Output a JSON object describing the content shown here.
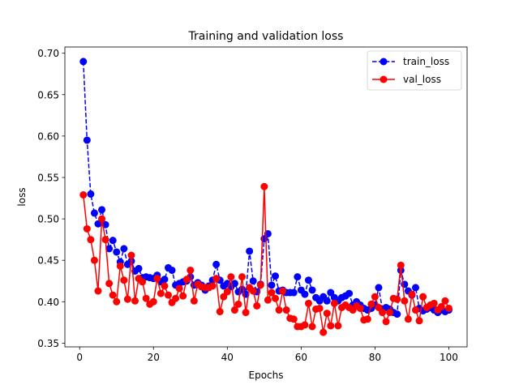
{
  "chart_data": {
    "type": "line",
    "title": "Training and validation loss",
    "xlabel": "Epochs",
    "ylabel": "loss",
    "xlim": [
      -4,
      104.95
    ],
    "ylim": [
      0.3455,
      0.7075
    ],
    "xticks": [
      0,
      20,
      40,
      60,
      80,
      100
    ],
    "yticks": [
      0.35,
      0.4,
      0.45,
      0.5,
      0.55,
      0.6,
      0.65,
      0.7
    ],
    "ytick_labels": [
      "0.35",
      "0.40",
      "0.45",
      "0.50",
      "0.55",
      "0.60",
      "0.65",
      "0.70"
    ],
    "legend_position": "top-right",
    "x": [
      1,
      2,
      3,
      4,
      5,
      6,
      7,
      8,
      9,
      10,
      11,
      12,
      13,
      14,
      15,
      16,
      17,
      18,
      19,
      20,
      21,
      22,
      23,
      24,
      25,
      26,
      27,
      28,
      29,
      30,
      31,
      32,
      33,
      34,
      35,
      36,
      37,
      38,
      39,
      40,
      41,
      42,
      43,
      44,
      45,
      46,
      47,
      48,
      49,
      50,
      51,
      52,
      53,
      54,
      55,
      56,
      57,
      58,
      59,
      60,
      61,
      62,
      63,
      64,
      65,
      66,
      67,
      68,
      69,
      70,
      71,
      72,
      73,
      74,
      75,
      76,
      77,
      78,
      79,
      80,
      81,
      82,
      83,
      84,
      85,
      86,
      87,
      88,
      89,
      90,
      91,
      92,
      93,
      94,
      95,
      96,
      97,
      98,
      99,
      100
    ],
    "series": [
      {
        "name": "train_loss",
        "color": "#0000ff",
        "linestyle": "dashed",
        "values": [
          0.69,
          0.595,
          0.53,
          0.507,
          0.494,
          0.511,
          0.493,
          0.464,
          0.474,
          0.46,
          0.448,
          0.464,
          0.445,
          0.449,
          0.437,
          0.44,
          0.429,
          0.43,
          0.429,
          0.428,
          0.432,
          0.424,
          0.427,
          0.441,
          0.438,
          0.42,
          0.422,
          0.424,
          0.425,
          0.43,
          0.42,
          0.423,
          0.42,
          0.414,
          0.419,
          0.426,
          0.445,
          0.426,
          0.419,
          0.422,
          0.418,
          0.422,
          0.412,
          0.415,
          0.409,
          0.461,
          0.425,
          0.412,
          0.421,
          0.476,
          0.482,
          0.42,
          0.431,
          0.413,
          0.414,
          0.411,
          0.411,
          0.411,
          0.43,
          0.414,
          0.409,
          0.426,
          0.414,
          0.405,
          0.401,
          0.406,
          0.401,
          0.411,
          0.405,
          0.401,
          0.405,
          0.407,
          0.41,
          0.396,
          0.4,
          0.396,
          0.392,
          0.39,
          0.392,
          0.396,
          0.417,
          0.391,
          0.393,
          0.391,
          0.387,
          0.385,
          0.438,
          0.421,
          0.413,
          0.408,
          0.417,
          0.392,
          0.389,
          0.391,
          0.393,
          0.39,
          0.387,
          0.39,
          0.388,
          0.39
        ]
      },
      {
        "name": "val_loss",
        "color": "#ff0000",
        "linestyle": "solid",
        "values": [
          0.529,
          0.488,
          0.475,
          0.45,
          0.413,
          0.5,
          0.475,
          0.422,
          0.408,
          0.4,
          0.443,
          0.426,
          0.403,
          0.456,
          0.401,
          0.428,
          0.424,
          0.404,
          0.397,
          0.4,
          0.428,
          0.41,
          0.419,
          0.408,
          0.399,
          0.404,
          0.416,
          0.407,
          0.427,
          0.438,
          0.401,
          0.421,
          0.418,
          0.417,
          0.417,
          0.419,
          0.428,
          0.388,
          0.406,
          0.412,
          0.43,
          0.39,
          0.397,
          0.43,
          0.387,
          0.417,
          0.413,
          0.395,
          0.42,
          0.539,
          0.402,
          0.411,
          0.404,
          0.39,
          0.413,
          0.39,
          0.38,
          0.379,
          0.37,
          0.37,
          0.372,
          0.398,
          0.37,
          0.391,
          0.392,
          0.363,
          0.386,
          0.371,
          0.398,
          0.371,
          0.393,
          0.396,
          0.393,
          0.39,
          0.395,
          0.392,
          0.378,
          0.379,
          0.397,
          0.406,
          0.393,
          0.387,
          0.376,
          0.387,
          0.404,
          0.403,
          0.444,
          0.401,
          0.379,
          0.409,
          0.39,
          0.377,
          0.406,
          0.393,
          0.396,
          0.398,
          0.39,
          0.394,
          0.401,
          0.392
        ]
      }
    ]
  }
}
